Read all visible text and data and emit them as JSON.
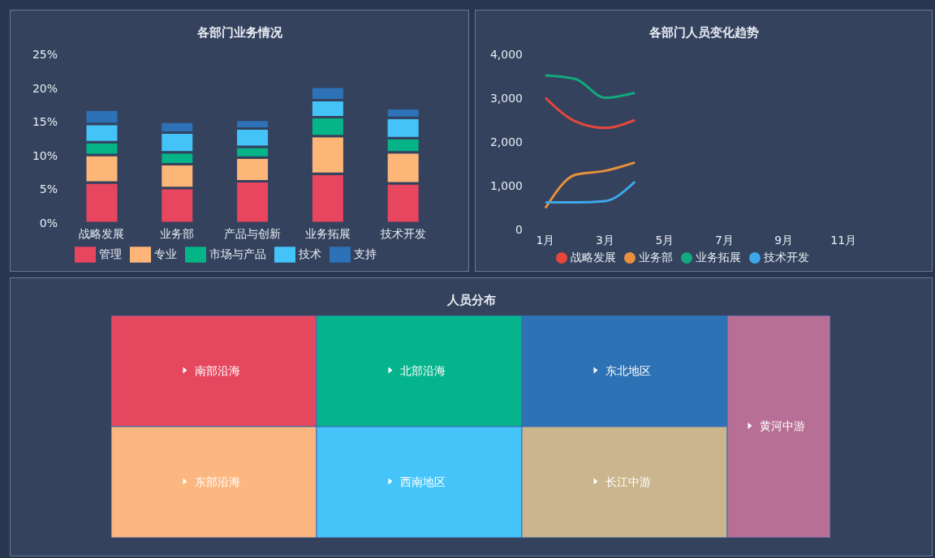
{
  "chart_data": [
    {
      "type": "bar",
      "title": "各部门业务情况",
      "stacked": true,
      "categories": [
        "战略发展",
        "业务部",
        "产品与创新",
        "业务拓展",
        "技术开发"
      ],
      "series": [
        {
          "name": "管理",
          "color": "#e8455f",
          "values": [
            6.0,
            5.2,
            6.2,
            7.3,
            5.9
          ]
        },
        {
          "name": "专业",
          "color": "#fdb678",
          "values": [
            4.1,
            3.5,
            3.5,
            5.6,
            4.6
          ]
        },
        {
          "name": "市场与产品",
          "color": "#05b487",
          "values": [
            1.9,
            1.8,
            1.6,
            2.8,
            2.1
          ]
        },
        {
          "name": "技术",
          "color": "#43c3f7",
          "values": [
            2.7,
            2.9,
            2.7,
            2.5,
            3.0
          ]
        },
        {
          "name": "支持",
          "color": "#2d71b6",
          "values": [
            2.1,
            1.6,
            1.3,
            2.0,
            1.4
          ]
        }
      ],
      "ylim": [
        0,
        25
      ],
      "yticks": [
        {
          "value": 0,
          "label": "0%"
        },
        {
          "value": 5,
          "label": "5%"
        },
        {
          "value": 10,
          "label": "10%"
        },
        {
          "value": 15,
          "label": "15%"
        },
        {
          "value": 20,
          "label": "20%"
        },
        {
          "value": 25,
          "label": "25%"
        }
      ],
      "grid": false,
      "legend": "bottom"
    },
    {
      "type": "line",
      "title": "各部门人员变化趋势",
      "categories": [
        "1月",
        null,
        "3月",
        null,
        "5月",
        null,
        "7月",
        null,
        "9月",
        null,
        "11月",
        null
      ],
      "series": [
        {
          "name": "战略发展",
          "color": "#e5473a",
          "values": [
            3010,
            2470,
            2320,
            2500,
            null,
            null,
            null,
            null,
            null,
            null,
            null,
            null
          ]
        },
        {
          "name": "业务部",
          "color": "#e8913a",
          "values": [
            490,
            1250,
            1340,
            1530,
            null,
            null,
            null,
            null,
            null,
            null,
            null,
            null
          ]
        },
        {
          "name": "业务拓展",
          "color": "#12a97c",
          "values": [
            3520,
            3440,
            3010,
            3120,
            null,
            null,
            null,
            null,
            null,
            null,
            null,
            null
          ]
        },
        {
          "name": "技术开发",
          "color": "#3ea7e8",
          "values": [
            620,
            620,
            650,
            1090,
            null,
            null,
            null,
            null,
            null,
            null,
            null,
            null
          ]
        }
      ],
      "ylim": [
        0,
        4000
      ],
      "yticks": [
        0,
        {
          "value": 1000,
          "label": "1,000"
        },
        {
          "value": 2000,
          "label": "2,000"
        },
        {
          "value": 3000,
          "label": "3,000"
        },
        {
          "value": 4000,
          "label": "4,000"
        }
      ],
      "grid": false,
      "legend": "bottom"
    },
    {
      "type": "other",
      "title": "人员分布",
      "categories": [
        "南部沿海",
        "东部沿海",
        "北部沿海",
        "西南地区",
        "东北地区",
        "长江中游",
        "黄河中游"
      ],
      "colors": [
        "#e5475f",
        "#fbb77f",
        "#05b38d",
        "#44c4f8",
        "#2d72b5",
        "#cbb58e",
        "#b86f95"
      ]
    }
  ]
}
